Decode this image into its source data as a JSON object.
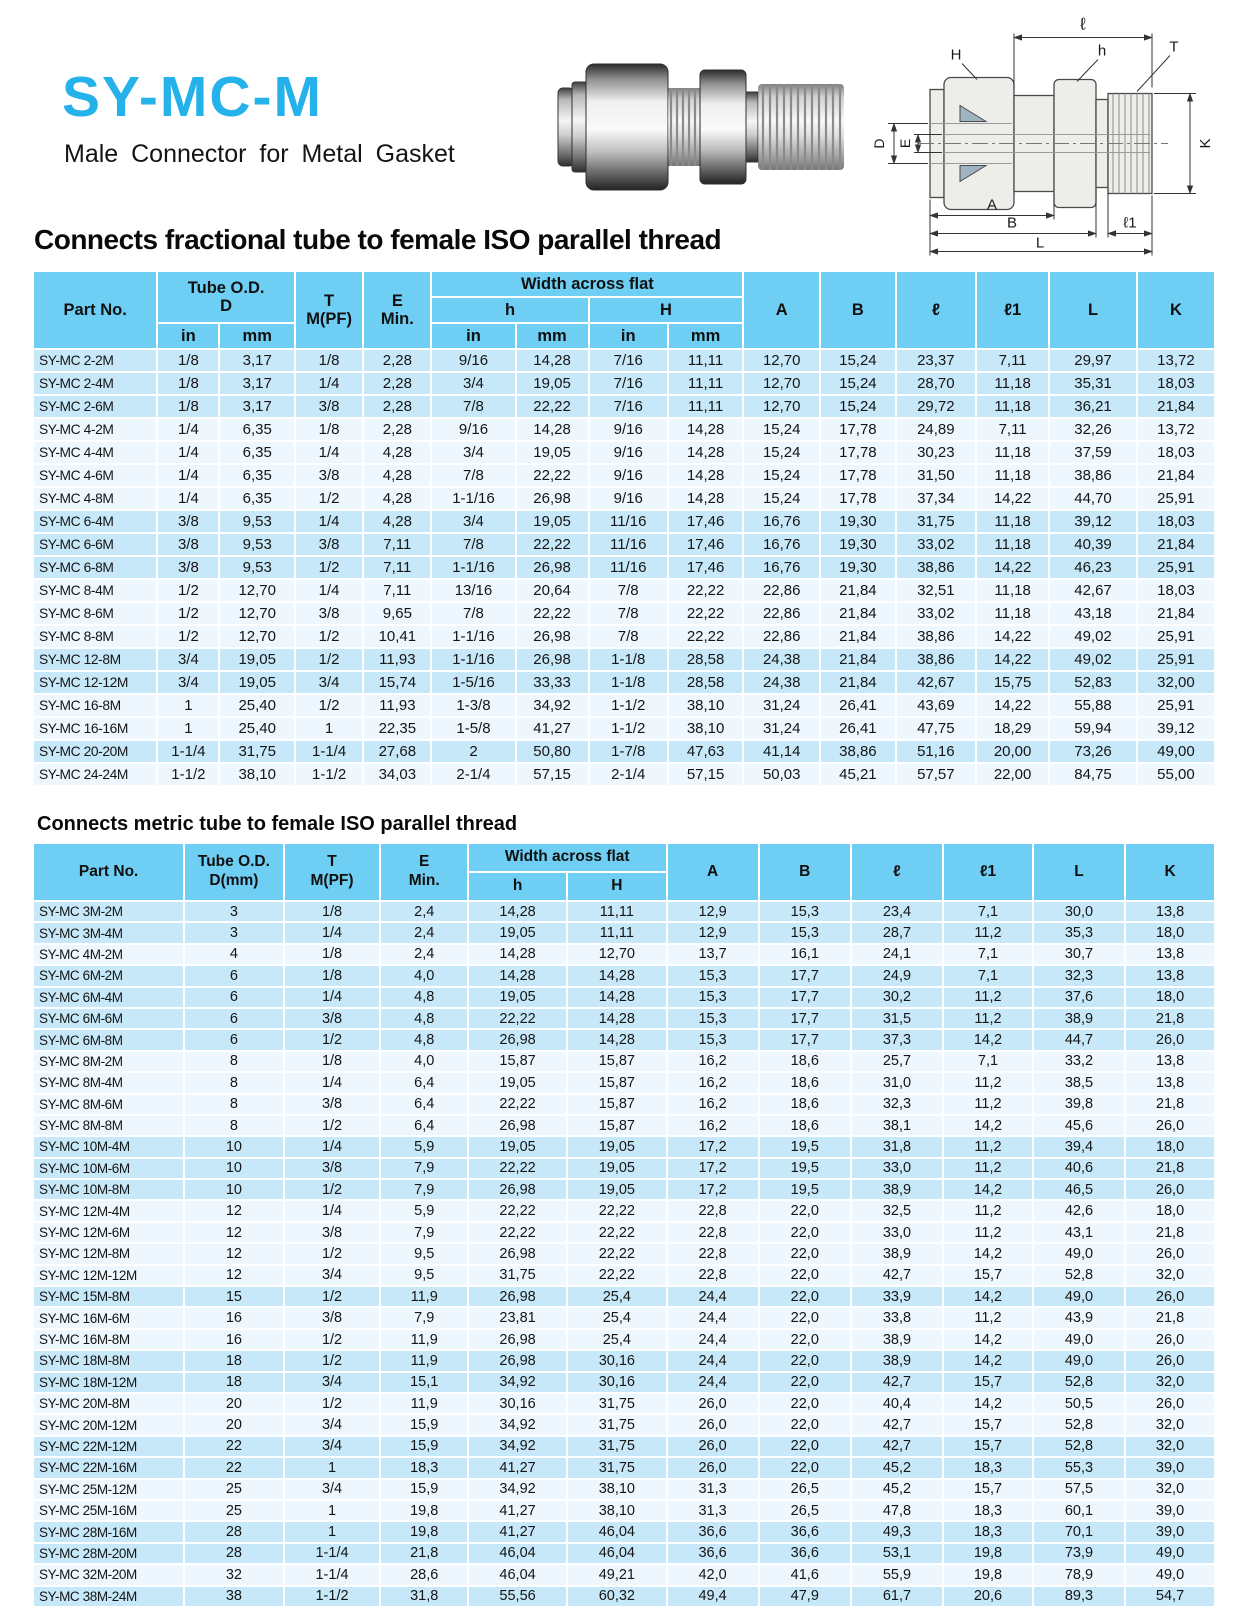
{
  "colors": {
    "accent": "#25B2EA",
    "table_header": "#6FCEF3",
    "row_blue": "#C6E8F8",
    "row_light": "#EDF7FD"
  },
  "header": {
    "title": "SY-MC-M",
    "subtitle": "Male Connector for Metal Gasket"
  },
  "diagram": {
    "labels": {
      "l": "ℓ",
      "h": "h",
      "t": "T",
      "bigH": "H",
      "d": "D",
      "e": "E",
      "k": "K",
      "a": "A",
      "b": "B",
      "l1": "ℓ1",
      "bigL": "L"
    }
  },
  "fractional": {
    "heading": "Connects fractional tube to female ISO parallel thread",
    "columns": {
      "part": "Part No.",
      "tube1": "Tube O.D.",
      "tube2": "D",
      "t1": "T",
      "t2": "M(PF)",
      "e1": "E",
      "e2": "Min.",
      "waf": "Width across flat",
      "h": "h",
      "bigH": "H",
      "in": "in",
      "mm": "mm",
      "a": "A",
      "b": "B",
      "l": "ℓ",
      "l1": "ℓ1",
      "bigL": "L",
      "k": "K"
    },
    "rows": [
      {
        "s": "b",
        "c": [
          "SY-MC 2-2M",
          "1/8",
          "3,17",
          "1/8",
          "2,28",
          "9/16",
          "14,28",
          "7/16",
          "11,11",
          "12,70",
          "15,24",
          "23,37",
          "7,11",
          "29,97",
          "13,72"
        ]
      },
      {
        "s": "b",
        "c": [
          "SY-MC 2-4M",
          "1/8",
          "3,17",
          "1/4",
          "2,28",
          "3/4",
          "19,05",
          "7/16",
          "11,11",
          "12,70",
          "15,24",
          "28,70",
          "11,18",
          "35,31",
          "18,03"
        ]
      },
      {
        "s": "b",
        "c": [
          "SY-MC 2-6M",
          "1/8",
          "3,17",
          "3/8",
          "2,28",
          "7/8",
          "22,22",
          "7/16",
          "11,11",
          "12,70",
          "15,24",
          "29,72",
          "11,18",
          "36,21",
          "21,84"
        ]
      },
      {
        "s": "w",
        "c": [
          "SY-MC 4-2M",
          "1/4",
          "6,35",
          "1/8",
          "2,28",
          "9/16",
          "14,28",
          "9/16",
          "14,28",
          "15,24",
          "17,78",
          "24,89",
          "7,11",
          "32,26",
          "13,72"
        ]
      },
      {
        "s": "w",
        "c": [
          "SY-MC 4-4M",
          "1/4",
          "6,35",
          "1/4",
          "4,28",
          "3/4",
          "19,05",
          "9/16",
          "14,28",
          "15,24",
          "17,78",
          "30,23",
          "11,18",
          "37,59",
          "18,03"
        ]
      },
      {
        "s": "w",
        "c": [
          "SY-MC 4-6M",
          "1/4",
          "6,35",
          "3/8",
          "4,28",
          "7/8",
          "22,22",
          "9/16",
          "14,28",
          "15,24",
          "17,78",
          "31,50",
          "11,18",
          "38,86",
          "21,84"
        ]
      },
      {
        "s": "w",
        "c": [
          "SY-MC 4-8M",
          "1/4",
          "6,35",
          "1/2",
          "4,28",
          "1-1/16",
          "26,98",
          "9/16",
          "14,28",
          "15,24",
          "17,78",
          "37,34",
          "14,22",
          "44,70",
          "25,91"
        ]
      },
      {
        "s": "b",
        "c": [
          "SY-MC 6-4M",
          "3/8",
          "9,53",
          "1/4",
          "4,28",
          "3/4",
          "19,05",
          "11/16",
          "17,46",
          "16,76",
          "19,30",
          "31,75",
          "11,18",
          "39,12",
          "18,03"
        ]
      },
      {
        "s": "b",
        "c": [
          "SY-MC 6-6M",
          "3/8",
          "9,53",
          "3/8",
          "7,11",
          "7/8",
          "22,22",
          "11/16",
          "17,46",
          "16,76",
          "19,30",
          "33,02",
          "11,18",
          "40,39",
          "21,84"
        ]
      },
      {
        "s": "b",
        "c": [
          "SY-MC 6-8M",
          "3/8",
          "9,53",
          "1/2",
          "7,11",
          "1-1/16",
          "26,98",
          "11/16",
          "17,46",
          "16,76",
          "19,30",
          "38,86",
          "14,22",
          "46,23",
          "25,91"
        ]
      },
      {
        "s": "w",
        "c": [
          "SY-MC 8-4M",
          "1/2",
          "12,70",
          "1/4",
          "7,11",
          "13/16",
          "20,64",
          "7/8",
          "22,22",
          "22,86",
          "21,84",
          "32,51",
          "11,18",
          "42,67",
          "18,03"
        ]
      },
      {
        "s": "w",
        "c": [
          "SY-MC 8-6M",
          "1/2",
          "12,70",
          "3/8",
          "9,65",
          "7/8",
          "22,22",
          "7/8",
          "22,22",
          "22,86",
          "21,84",
          "33,02",
          "11,18",
          "43,18",
          "21,84"
        ]
      },
      {
        "s": "w",
        "c": [
          "SY-MC 8-8M",
          "1/2",
          "12,70",
          "1/2",
          "10,41",
          "1-1/16",
          "26,98",
          "7/8",
          "22,22",
          "22,86",
          "21,84",
          "38,86",
          "14,22",
          "49,02",
          "25,91"
        ]
      },
      {
        "s": "b",
        "c": [
          "SY-MC 12-8M",
          "3/4",
          "19,05",
          "1/2",
          "11,93",
          "1-1/16",
          "26,98",
          "1-1/8",
          "28,58",
          "24,38",
          "21,84",
          "38,86",
          "14,22",
          "49,02",
          "25,91"
        ]
      },
      {
        "s": "b",
        "c": [
          "SY-MC 12-12M",
          "3/4",
          "19,05",
          "3/4",
          "15,74",
          "1-5/16",
          "33,33",
          "1-1/8",
          "28,58",
          "24,38",
          "21,84",
          "42,67",
          "15,75",
          "52,83",
          "32,00"
        ]
      },
      {
        "s": "w",
        "c": [
          "SY-MC 16-8M",
          "1",
          "25,40",
          "1/2",
          "11,93",
          "1-3/8",
          "34,92",
          "1-1/2",
          "38,10",
          "31,24",
          "26,41",
          "43,69",
          "14,22",
          "55,88",
          "25,91"
        ]
      },
      {
        "s": "w",
        "c": [
          "SY-MC 16-16M",
          "1",
          "25,40",
          "1",
          "22,35",
          "1-5/8",
          "41,27",
          "1-1/2",
          "38,10",
          "31,24",
          "26,41",
          "47,75",
          "18,29",
          "59,94",
          "39,12"
        ]
      },
      {
        "s": "b",
        "c": [
          "SY-MC 20-20M",
          "1-1/4",
          "31,75",
          "1-1/4",
          "27,68",
          "2",
          "50,80",
          "1-7/8",
          "47,63",
          "41,14",
          "38,86",
          "51,16",
          "20,00",
          "73,26",
          "49,00"
        ]
      },
      {
        "s": "w",
        "c": [
          "SY-MC 24-24M",
          "1-1/2",
          "38,10",
          "1-1/2",
          "34,03",
          "2-1/4",
          "57,15",
          "2-1/4",
          "57,15",
          "50,03",
          "45,21",
          "57,57",
          "22,00",
          "84,75",
          "55,00"
        ]
      }
    ]
  },
  "metric": {
    "heading": "Connects metric tube to female ISO parallel thread",
    "columns": {
      "part": "Part No.",
      "tube1": "Tube O.D.",
      "tube2": "D(mm)",
      "t1": "T",
      "t2": "M(PF)",
      "e1": "E",
      "e2": "Min.",
      "waf": "Width across flat",
      "h": "h",
      "bigH": "H",
      "a": "A",
      "b": "B",
      "l": "ℓ",
      "l1": "ℓ1",
      "bigL": "L",
      "k": "K"
    },
    "rows": [
      {
        "s": "b",
        "c": [
          "SY-MC 3M-2M",
          "3",
          "1/8",
          "2,4",
          "14,28",
          "11,11",
          "12,9",
          "15,3",
          "23,4",
          "7,1",
          "30,0",
          "13,8"
        ]
      },
      {
        "s": "b",
        "c": [
          "SY-MC 3M-4M",
          "3",
          "1/4",
          "2,4",
          "19,05",
          "11,11",
          "12,9",
          "15,3",
          "28,7",
          "11,2",
          "35,3",
          "18,0"
        ]
      },
      {
        "s": "w",
        "c": [
          "SY-MC 4M-2M",
          "4",
          "1/8",
          "2,4",
          "14,28",
          "12,70",
          "13,7",
          "16,1",
          "24,1",
          "7,1",
          "30,7",
          "13,8"
        ]
      },
      {
        "s": "b",
        "c": [
          "SY-MC 6M-2M",
          "6",
          "1/8",
          "4,0",
          "14,28",
          "14,28",
          "15,3",
          "17,7",
          "24,9",
          "7,1",
          "32,3",
          "13,8"
        ]
      },
      {
        "s": "b",
        "c": [
          "SY-MC 6M-4M",
          "6",
          "1/4",
          "4,8",
          "19,05",
          "14,28",
          "15,3",
          "17,7",
          "30,2",
          "11,2",
          "37,6",
          "18,0"
        ]
      },
      {
        "s": "b",
        "c": [
          "SY-MC 6M-6M",
          "6",
          "3/8",
          "4,8",
          "22,22",
          "14,28",
          "15,3",
          "17,7",
          "31,5",
          "11,2",
          "38,9",
          "21,8"
        ]
      },
      {
        "s": "b",
        "c": [
          "SY-MC 6M-8M",
          "6",
          "1/2",
          "4,8",
          "26,98",
          "14,28",
          "15,3",
          "17,7",
          "37,3",
          "14,2",
          "44,7",
          "26,0"
        ]
      },
      {
        "s": "w",
        "c": [
          "SY-MC 8M-2M",
          "8",
          "1/8",
          "4,0",
          "15,87",
          "15,87",
          "16,2",
          "18,6",
          "25,7",
          "7,1",
          "33,2",
          "13,8"
        ]
      },
      {
        "s": "w",
        "c": [
          "SY-MC 8M-4M",
          "8",
          "1/4",
          "6,4",
          "19,05",
          "15,87",
          "16,2",
          "18,6",
          "31,0",
          "11,2",
          "38,5",
          "13,8"
        ]
      },
      {
        "s": "w",
        "c": [
          "SY-MC 8M-6M",
          "8",
          "3/8",
          "6,4",
          "22,22",
          "15,87",
          "16,2",
          "18,6",
          "32,3",
          "11,2",
          "39,8",
          "21,8"
        ]
      },
      {
        "s": "w",
        "c": [
          "SY-MC 8M-8M",
          "8",
          "1/2",
          "6,4",
          "26,98",
          "15,87",
          "16,2",
          "18,6",
          "38,1",
          "14,2",
          "45,6",
          "26,0"
        ]
      },
      {
        "s": "b",
        "c": [
          "SY-MC 10M-4M",
          "10",
          "1/4",
          "5,9",
          "19,05",
          "19,05",
          "17,2",
          "19,5",
          "31,8",
          "11,2",
          "39,4",
          "18,0"
        ]
      },
      {
        "s": "b",
        "c": [
          "SY-MC 10M-6M",
          "10",
          "3/8",
          "7,9",
          "22,22",
          "19,05",
          "17,2",
          "19,5",
          "33,0",
          "11,2",
          "40,6",
          "21,8"
        ]
      },
      {
        "s": "b",
        "c": [
          "SY-MC 10M-8M",
          "10",
          "1/2",
          "7,9",
          "26,98",
          "19,05",
          "17,2",
          "19,5",
          "38,9",
          "14,2",
          "46,5",
          "26,0"
        ]
      },
      {
        "s": "w",
        "c": [
          "SY-MC 12M-4M",
          "12",
          "1/4",
          "5,9",
          "22,22",
          "22,22",
          "22,8",
          "22,0",
          "32,5",
          "11,2",
          "42,6",
          "18,0"
        ]
      },
      {
        "s": "w",
        "c": [
          "SY-MC 12M-6M",
          "12",
          "3/8",
          "7,9",
          "22,22",
          "22,22",
          "22,8",
          "22,0",
          "33,0",
          "11,2",
          "43,1",
          "21,8"
        ]
      },
      {
        "s": "w",
        "c": [
          "SY-MC 12M-8M",
          "12",
          "1/2",
          "9,5",
          "26,98",
          "22,22",
          "22,8",
          "22,0",
          "38,9",
          "14,2",
          "49,0",
          "26,0"
        ]
      },
      {
        "s": "w",
        "c": [
          "SY-MC 12M-12M",
          "12",
          "3/4",
          "9,5",
          "31,75",
          "22,22",
          "22,8",
          "22,0",
          "42,7",
          "15,7",
          "52,8",
          "32,0"
        ]
      },
      {
        "s": "b",
        "c": [
          "SY-MC 15M-8M",
          "15",
          "1/2",
          "11,9",
          "26,98",
          "25,4",
          "24,4",
          "22,0",
          "33,9",
          "14,2",
          "49,0",
          "26,0"
        ]
      },
      {
        "s": "w",
        "c": [
          "SY-MC 16M-6M",
          "16",
          "3/8",
          "7,9",
          "23,81",
          "25,4",
          "24,4",
          "22,0",
          "33,8",
          "11,2",
          "43,9",
          "21,8"
        ]
      },
      {
        "s": "w",
        "c": [
          "SY-MC 16M-8M",
          "16",
          "1/2",
          "11,9",
          "26,98",
          "25,4",
          "24,4",
          "22,0",
          "38,9",
          "14,2",
          "49,0",
          "26,0"
        ]
      },
      {
        "s": "b",
        "c": [
          "SY-MC 18M-8M",
          "18",
          "1/2",
          "11,9",
          "26,98",
          "30,16",
          "24,4",
          "22,0",
          "38,9",
          "14,2",
          "49,0",
          "26,0"
        ]
      },
      {
        "s": "b",
        "c": [
          "SY-MC 18M-12M",
          "18",
          "3/4",
          "15,1",
          "34,92",
          "30,16",
          "24,4",
          "22,0",
          "42,7",
          "15,7",
          "52,8",
          "32,0"
        ]
      },
      {
        "s": "w",
        "c": [
          "SY-MC 20M-8M",
          "20",
          "1/2",
          "11,9",
          "30,16",
          "31,75",
          "26,0",
          "22,0",
          "40,4",
          "14,2",
          "50,5",
          "26,0"
        ]
      },
      {
        "s": "w",
        "c": [
          "SY-MC 20M-12M",
          "20",
          "3/4",
          "15,9",
          "34,92",
          "31,75",
          "26,0",
          "22,0",
          "42,7",
          "15,7",
          "52,8",
          "32,0"
        ]
      },
      {
        "s": "b",
        "c": [
          "SY-MC 22M-12M",
          "22",
          "3/4",
          "15,9",
          "34,92",
          "31,75",
          "26,0",
          "22,0",
          "42,7",
          "15,7",
          "52,8",
          "32,0"
        ]
      },
      {
        "s": "b",
        "c": [
          "SY-MC 22M-16M",
          "22",
          "1",
          "18,3",
          "41,27",
          "31,75",
          "26,0",
          "22,0",
          "45,2",
          "18,3",
          "55,3",
          "39,0"
        ]
      },
      {
        "s": "w",
        "c": [
          "SY-MC 25M-12M",
          "25",
          "3/4",
          "15,9",
          "34,92",
          "38,10",
          "31,3",
          "26,5",
          "45,2",
          "15,7",
          "57,5",
          "32,0"
        ]
      },
      {
        "s": "w",
        "c": [
          "SY-MC 25M-16M",
          "25",
          "1",
          "19,8",
          "41,27",
          "38,10",
          "31,3",
          "26,5",
          "47,8",
          "18,3",
          "60,1",
          "39,0"
        ]
      },
      {
        "s": "b",
        "c": [
          "SY-MC 28M-16M",
          "28",
          "1",
          "19,8",
          "41,27",
          "46,04",
          "36,6",
          "36,6",
          "49,3",
          "18,3",
          "70,1",
          "39,0"
        ]
      },
      {
        "s": "b",
        "c": [
          "SY-MC 28M-20M",
          "28",
          "1-1/4",
          "21,8",
          "46,04",
          "46,04",
          "36,6",
          "36,6",
          "53,1",
          "19,8",
          "73,9",
          "49,0"
        ]
      },
      {
        "s": "w",
        "c": [
          "SY-MC 32M-20M",
          "32",
          "1-1/4",
          "28,6",
          "46,04",
          "49,21",
          "42,0",
          "41,6",
          "55,9",
          "19,8",
          "78,9",
          "49,0"
        ]
      },
      {
        "s": "b",
        "c": [
          "SY-MC 38M-24M",
          "38",
          "1-1/2",
          "31,8",
          "55,56",
          "60,32",
          "49,4",
          "47,9",
          "61,7",
          "20,6",
          "89,3",
          "54,7"
        ]
      }
    ]
  }
}
